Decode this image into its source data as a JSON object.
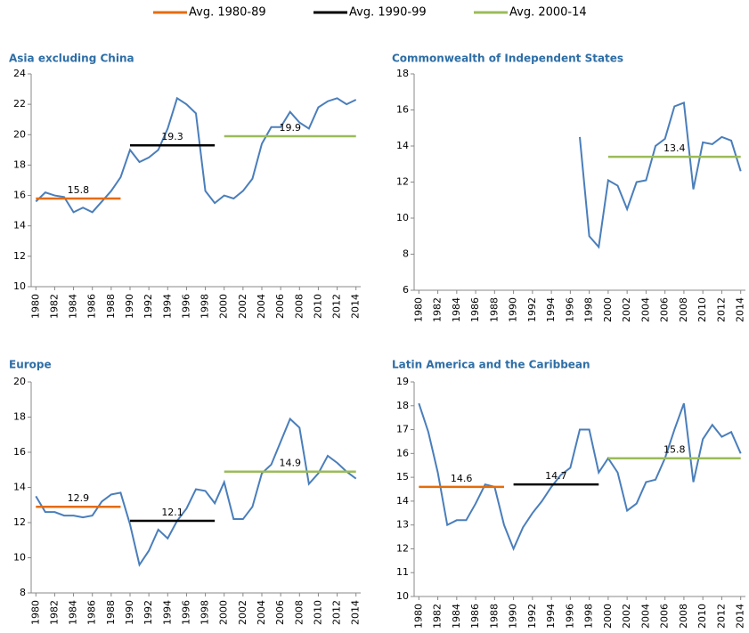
{
  "legend": [
    {
      "name": "Avg. 1980-89",
      "color": "#e46c0a"
    },
    {
      "name": "Avg. 1990-99",
      "color": "#000000"
    },
    {
      "name": "Avg. 2000-14",
      "color": "#9bbb59"
    }
  ],
  "chart_data": [
    {
      "type": "line",
      "title": "Asia excluding China",
      "x": [
        1980,
        1981,
        1982,
        1983,
        1984,
        1985,
        1986,
        1987,
        1988,
        1989,
        1990,
        1991,
        1992,
        1993,
        1994,
        1995,
        1996,
        1997,
        1998,
        1999,
        2000,
        2001,
        2002,
        2003,
        2004,
        2005,
        2006,
        2007,
        2008,
        2009,
        2010,
        2011,
        2012,
        2013,
        2014
      ],
      "series": [
        {
          "color": "#4a7ebb",
          "values": [
            15.6,
            16.2,
            16.0,
            15.9,
            14.9,
            15.2,
            14.9,
            15.6,
            16.3,
            17.2,
            19.0,
            18.2,
            18.5,
            19.0,
            20.4,
            22.4,
            22.0,
            21.4,
            16.3,
            15.5,
            16.0,
            15.8,
            16.3,
            17.1,
            19.4,
            20.5,
            20.5,
            21.5,
            20.8,
            20.4,
            21.8,
            22.2,
            22.4,
            22.0,
            22.3
          ]
        }
      ],
      "averages": [
        {
          "value": 15.8,
          "x": [
            1980,
            1989
          ],
          "color": "#e46c0a"
        },
        {
          "value": 19.3,
          "x": [
            1990,
            1999
          ],
          "color": "#000000"
        },
        {
          "value": 19.9,
          "x": [
            2000,
            2014
          ],
          "color": "#9bbb59"
        }
      ],
      "xlim": [
        1979.5,
        2014.5
      ],
      "xticks": [
        1980,
        1982,
        1984,
        1986,
        1988,
        1990,
        1992,
        1994,
        1996,
        1998,
        2000,
        2002,
        2004,
        2006,
        2008,
        2010,
        2012,
        2014
      ],
      "ylim": [
        10,
        24
      ],
      "yticks": [
        10,
        12,
        14,
        16,
        18,
        20,
        22,
        24
      ]
    },
    {
      "type": "line",
      "title": "Commonwealth of Independent States",
      "x": [
        1980,
        1981,
        1982,
        1983,
        1984,
        1985,
        1986,
        1987,
        1988,
        1989,
        1990,
        1991,
        1992,
        1993,
        1994,
        1995,
        1996,
        1997,
        1998,
        1999,
        2000,
        2001,
        2002,
        2003,
        2004,
        2005,
        2006,
        2007,
        2008,
        2009,
        2010,
        2011,
        2012,
        2013,
        2014
      ],
      "series": [
        {
          "color": "#4a7ebb",
          "values": [
            null,
            null,
            null,
            null,
            null,
            null,
            null,
            null,
            null,
            null,
            null,
            null,
            null,
            null,
            null,
            null,
            null,
            14.5,
            9.0,
            8.4,
            12.1,
            11.8,
            10.5,
            12.0,
            12.1,
            14.0,
            14.4,
            16.2,
            16.4,
            11.6,
            14.2,
            14.1,
            14.5,
            14.3,
            12.6
          ]
        }
      ],
      "averages": [
        {
          "value": 13.4,
          "x": [
            2000,
            2014
          ],
          "color": "#9bbb59"
        }
      ],
      "xlim": [
        1979.5,
        2014.5
      ],
      "xticks": [
        1980,
        1982,
        1984,
        1986,
        1988,
        1990,
        1992,
        1994,
        1996,
        1998,
        2000,
        2002,
        2004,
        2006,
        2008,
        2010,
        2012,
        2014
      ],
      "ylim": [
        6,
        18
      ],
      "yticks": [
        6,
        8,
        10,
        12,
        14,
        16,
        18
      ]
    },
    {
      "type": "line",
      "title": "Europe",
      "x": [
        1980,
        1981,
        1982,
        1983,
        1984,
        1985,
        1986,
        1987,
        1988,
        1989,
        1990,
        1991,
        1992,
        1993,
        1994,
        1995,
        1996,
        1997,
        1998,
        1999,
        2000,
        2001,
        2002,
        2003,
        2004,
        2005,
        2006,
        2007,
        2008,
        2009,
        2010,
        2011,
        2012,
        2013,
        2014
      ],
      "series": [
        {
          "color": "#4a7ebb",
          "values": [
            13.5,
            12.6,
            12.6,
            12.4,
            12.4,
            12.3,
            12.4,
            13.2,
            13.6,
            13.7,
            11.9,
            9.6,
            10.4,
            11.6,
            11.1,
            12.1,
            12.8,
            13.9,
            13.8,
            13.1,
            14.3,
            12.2,
            12.2,
            12.9,
            14.8,
            15.3,
            16.6,
            17.9,
            17.4,
            14.2,
            14.8,
            15.8,
            15.4,
            14.9,
            14.5
          ]
        }
      ],
      "averages": [
        {
          "value": 12.9,
          "x": [
            1980,
            1989
          ],
          "color": "#e46c0a"
        },
        {
          "value": 12.1,
          "x": [
            1990,
            1999
          ],
          "color": "#000000"
        },
        {
          "value": 14.9,
          "x": [
            2000,
            2014
          ],
          "color": "#9bbb59"
        }
      ],
      "xlim": [
        1979.5,
        2014.5
      ],
      "xticks": [
        1980,
        1982,
        1984,
        1986,
        1988,
        1990,
        1992,
        1994,
        1996,
        1998,
        2000,
        2002,
        2004,
        2006,
        2008,
        2010,
        2012,
        2014
      ],
      "ylim": [
        8,
        20
      ],
      "yticks": [
        8,
        10,
        12,
        14,
        16,
        18,
        20
      ]
    },
    {
      "type": "line",
      "title": "Latin America and the Caribbean",
      "x": [
        1980,
        1981,
        1982,
        1983,
        1984,
        1985,
        1986,
        1987,
        1988,
        1989,
        1990,
        1991,
        1992,
        1993,
        1994,
        1995,
        1996,
        1997,
        1998,
        1999,
        2000,
        2001,
        2002,
        2003,
        2004,
        2005,
        2006,
        2007,
        2008,
        2009,
        2010,
        2011,
        2012,
        2013,
        2014
      ],
      "series": [
        {
          "color": "#4a7ebb",
          "values": [
            18.1,
            16.9,
            15.2,
            13.0,
            13.2,
            13.2,
            13.9,
            14.7,
            14.6,
            13.0,
            12.0,
            12.9,
            13.5,
            14.0,
            14.6,
            15.1,
            15.4,
            17.0,
            17.0,
            15.2,
            15.8,
            15.2,
            13.6,
            13.9,
            14.8,
            14.9,
            15.8,
            17.0,
            18.1,
            14.8,
            16.6,
            17.2,
            16.7,
            16.9,
            16.0
          ]
        }
      ],
      "averages": [
        {
          "value": 14.6,
          "x": [
            1980,
            1989
          ],
          "color": "#e46c0a"
        },
        {
          "value": 14.7,
          "x": [
            1990,
            1999
          ],
          "color": "#000000"
        },
        {
          "value": 15.8,
          "x": [
            2000,
            2014
          ],
          "color": "#9bbb59"
        }
      ],
      "xlim": [
        1979.5,
        2014.5
      ],
      "xticks": [
        1980,
        1982,
        1984,
        1986,
        1988,
        1990,
        1992,
        1994,
        1996,
        1998,
        2000,
        2002,
        2004,
        2006,
        2008,
        2010,
        2012,
        2014
      ],
      "ylim": [
        10,
        19
      ],
      "yticks": [
        10,
        11,
        12,
        13,
        14,
        15,
        16,
        17,
        18,
        19
      ]
    }
  ]
}
